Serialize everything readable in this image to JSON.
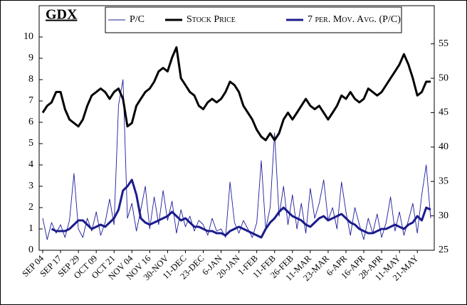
{
  "chart_data": {
    "type": "line",
    "title": "GDX",
    "categories": [
      "SEP 04",
      null,
      null,
      null,
      "SEP 17",
      null,
      null,
      null,
      "SEP 29",
      null,
      null,
      null,
      "OCT 09",
      null,
      null,
      null,
      "OCT 21",
      null,
      null,
      null,
      "NOV 04",
      null,
      null,
      null,
      "NOV 16",
      null,
      null,
      null,
      "30-NOV",
      null,
      null,
      null,
      "11-DEC",
      null,
      null,
      null,
      "23-DEC",
      null,
      null,
      null,
      "6-JAN",
      null,
      null,
      null,
      "20-JAN",
      null,
      null,
      null,
      "1-FEB",
      null,
      null,
      null,
      "11-FEB",
      null,
      null,
      null,
      "26-FEB",
      null,
      null,
      null,
      "11-MAR",
      null,
      null,
      null,
      "23-MAR",
      null,
      null,
      null,
      "6-APR",
      null,
      null,
      null,
      "16-APR",
      null,
      null,
      null,
      "28-APR",
      null,
      null,
      null,
      "11-MAY",
      null,
      null,
      null,
      "21-MAY",
      null,
      null,
      null
    ],
    "series": [
      {
        "name": "P/C",
        "color": "#1c1c9c",
        "values": [
          1.5,
          0.5,
          1.3,
          0.8,
          1.2,
          0.6,
          1.4,
          3.6,
          1.0,
          0.6,
          1.5,
          0.9,
          1.8,
          0.7,
          1.3,
          2.4,
          1.2,
          6.8,
          8.0,
          1.5,
          2.2,
          0.9,
          1.9,
          3.0,
          1.0,
          2.5,
          1.2,
          2.8,
          1.4,
          2.3,
          0.8,
          1.9,
          1.1,
          1.6,
          0.9,
          1.4,
          1.2,
          0.7,
          1.5,
          0.9,
          1.0,
          0.6,
          3.2,
          1.3,
          0.8,
          1.4,
          1.0,
          0.6,
          1.3,
          4.2,
          1.0,
          2.0,
          5.5,
          1.6,
          3.0,
          1.2,
          2.6,
          1.0,
          2.2,
          0.8,
          2.9,
          1.5,
          2.2,
          3.3,
          1.4,
          2.0,
          1.0,
          3.2,
          1.8,
          0.7,
          2.0,
          1.2,
          0.5,
          1.5,
          0.8,
          1.7,
          0.6,
          1.3,
          2.5,
          0.9,
          1.8,
          0.7,
          1.4,
          2.2,
          0.8,
          2.6,
          4.0,
          1.5
        ]
      },
      {
        "name": "Stock Price",
        "color": "#000000",
        "axis": "y2",
        "values": [
          45,
          46,
          46.5,
          48,
          48,
          45.5,
          44,
          43.5,
          43,
          44,
          46,
          47.5,
          48,
          48.5,
          48,
          47,
          48,
          48.5,
          47,
          43,
          43.5,
          46,
          47,
          48,
          48.5,
          49.5,
          51,
          51.5,
          51,
          53,
          54.5,
          50,
          49,
          48,
          47.5,
          46,
          45.5,
          46.5,
          47,
          46.5,
          47,
          48,
          49.5,
          49,
          48,
          46,
          45,
          44,
          42.5,
          41.5,
          41,
          42,
          41,
          42,
          44,
          45,
          44,
          45,
          46,
          47,
          46,
          45.5,
          46,
          45,
          44,
          45,
          46,
          47.5,
          47,
          48,
          47,
          46.5,
          47,
          48.5,
          48,
          47.5,
          48,
          49,
          50,
          51,
          52,
          53.5,
          52,
          50,
          47.5,
          48,
          49.5,
          49.5
        ]
      },
      {
        "name": "7 per. Mov. Avg. (P/C)",
        "color": "#1c1c8c",
        "values": [
          null,
          null,
          1.0,
          0.9,
          0.9,
          0.9,
          1.0,
          1.2,
          1.4,
          1.4,
          1.2,
          1.0,
          1.1,
          1.2,
          1.1,
          1.3,
          1.5,
          1.9,
          2.8,
          3.0,
          3.3,
          2.6,
          1.5,
          1.3,
          1.2,
          1.3,
          1.4,
          1.5,
          1.6,
          1.8,
          1.6,
          1.4,
          1.5,
          1.3,
          1.1,
          1.1,
          1.0,
          0.9,
          0.9,
          0.8,
          0.8,
          0.7,
          0.9,
          1.0,
          1.1,
          1.0,
          0.9,
          0.8,
          0.7,
          0.6,
          1.0,
          1.3,
          1.5,
          1.8,
          2.0,
          1.8,
          1.6,
          1.5,
          1.4,
          1.2,
          1.1,
          1.3,
          1.5,
          1.6,
          1.4,
          1.5,
          1.6,
          1.7,
          1.5,
          1.3,
          1.2,
          1.0,
          0.9,
          0.8,
          0.8,
          0.9,
          1.0,
          1.0,
          1.1,
          1.2,
          1.1,
          1.0,
          1.2,
          1.3,
          1.6,
          1.4,
          2.0,
          1.9
        ]
      }
    ],
    "ylim": [
      0,
      10
    ],
    "yticks": [
      0,
      1,
      2,
      3,
      4,
      5,
      6,
      7,
      8,
      9,
      10
    ],
    "y2lim": [
      25,
      56
    ],
    "y2ticks": [
      25,
      30,
      35,
      40,
      45,
      50,
      55
    ]
  }
}
